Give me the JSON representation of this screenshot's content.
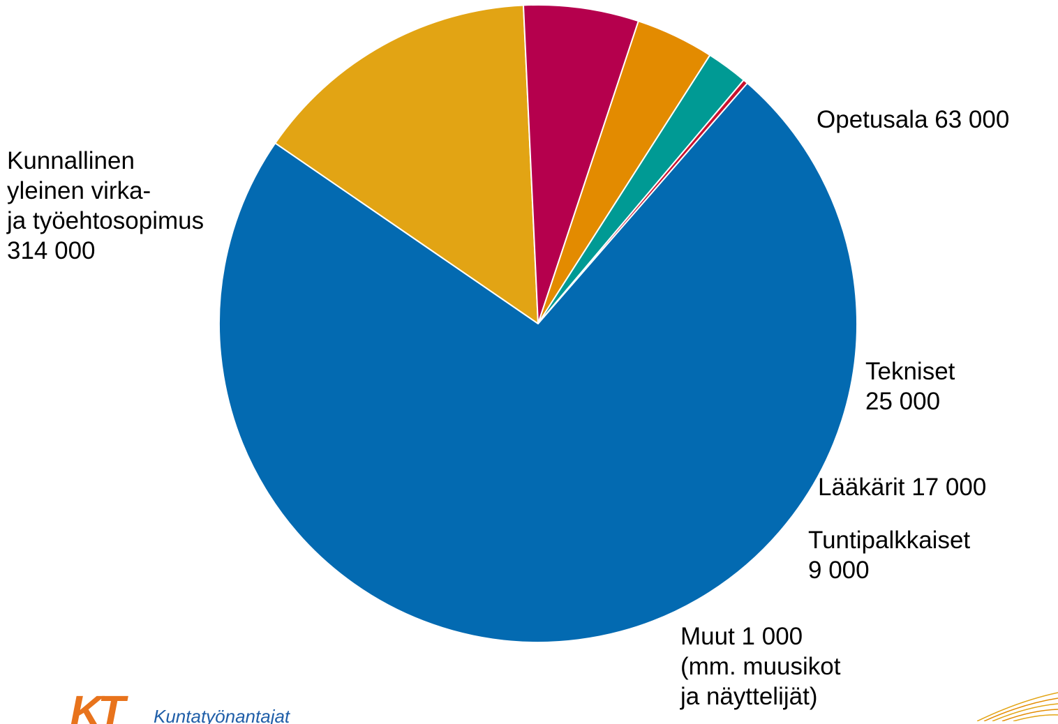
{
  "chart_data": {
    "type": "pie",
    "title": "",
    "slices": [
      {
        "label": "Kunnallinen\nyleinen virka-\nja työehtosopimus\n314 000",
        "value": 314000,
        "color": "#036ab1"
      },
      {
        "label": "Opetusala 63 000",
        "value": 63000,
        "color": "#e2a414"
      },
      {
        "label": "Tekniset\n25 000",
        "value": 25000,
        "color": "#b5004d"
      },
      {
        "label": "Lääkärit 17 000",
        "value": 17000,
        "color": "#e38b00"
      },
      {
        "label": "Tuntipalkkaiset\n9 000",
        "value": 9000,
        "color": "#009a94"
      },
      {
        "label": "Muut 1 000\n(mm. muusikot\nja näyttelijät)",
        "value": 1000,
        "color": "#c8102e"
      }
    ],
    "start_angle_deg": 311,
    "direction": "clockwise"
  },
  "logo": {
    "mark": "KT",
    "text": "Kuntatyönantajat",
    "mark_color": "#e8731c",
    "text_color": "#1f5ea8"
  }
}
